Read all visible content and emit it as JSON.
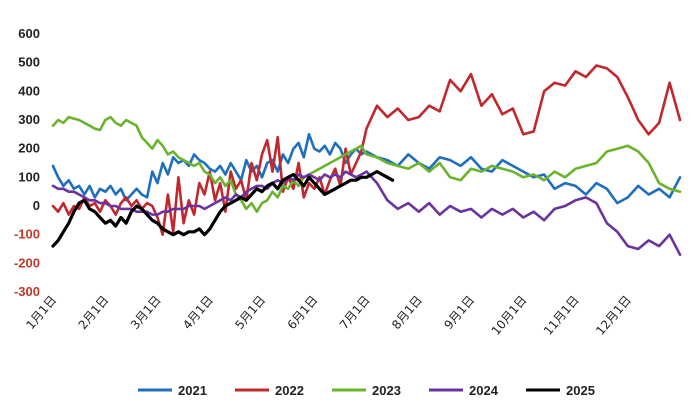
{
  "chart_data": {
    "type": "line",
    "title": "",
    "xlabel": "",
    "ylabel": "",
    "ylim": [
      -300,
      600
    ],
    "yticks": [
      600,
      500,
      400,
      300,
      200,
      100,
      0,
      -100,
      -200,
      -300
    ],
    "xticks": [
      "1月1日",
      "2月1日",
      "3月1日",
      "4月1日",
      "5月1日",
      "6月1日",
      "7月1日",
      "8月1日",
      "9月1日",
      "10月1日",
      "11月1日",
      "12月1日"
    ],
    "x_unit": "month (1 = 1月1日)",
    "grid": false,
    "legend_position": "bottom",
    "series": [
      {
        "name": "2021",
        "color": "#1f6fbf",
        "x": [
          1.0,
          1.1,
          1.2,
          1.3,
          1.4,
          1.5,
          1.6,
          1.7,
          1.8,
          1.9,
          2.0,
          2.1,
          2.2,
          2.3,
          2.4,
          2.5,
          2.6,
          2.7,
          2.8,
          2.9,
          3.0,
          3.1,
          3.2,
          3.3,
          3.4,
          3.5,
          3.6,
          3.7,
          3.8,
          3.9,
          4.0,
          4.1,
          4.2,
          4.3,
          4.4,
          4.5,
          4.6,
          4.7,
          4.8,
          4.9,
          5.0,
          5.1,
          5.2,
          5.3,
          5.4,
          5.5,
          5.6,
          5.7,
          5.8,
          5.9,
          6.0,
          6.1,
          6.2,
          6.3,
          6.4,
          6.5,
          6.6,
          6.7,
          6.8,
          6.9,
          7.0,
          7.2,
          7.4,
          7.6,
          7.8,
          8.0,
          8.2,
          8.4,
          8.6,
          8.8,
          9.0,
          9.2,
          9.4,
          9.6,
          9.8,
          10.0,
          10.2,
          10.4,
          10.6,
          10.8,
          11.0,
          11.2,
          11.4,
          11.6,
          11.8,
          12.0,
          12.2,
          12.4,
          12.6,
          12.8,
          13.0
        ],
        "y": [
          140,
          100,
          70,
          90,
          60,
          70,
          40,
          70,
          30,
          60,
          50,
          70,
          40,
          60,
          20,
          40,
          60,
          40,
          30,
          120,
          80,
          150,
          110,
          170,
          150,
          160,
          140,
          180,
          160,
          150,
          130,
          120,
          140,
          110,
          150,
          120,
          90,
          160,
          120,
          140,
          100,
          150,
          160,
          120,
          180,
          150,
          200,
          220,
          170,
          250,
          200,
          190,
          210,
          180,
          220,
          200,
          150,
          180,
          200,
          180,
          190,
          170,
          160,
          140,
          180,
          150,
          130,
          170,
          160,
          140,
          170,
          130,
          120,
          160,
          140,
          120,
          100,
          110,
          60,
          80,
          70,
          40,
          80,
          60,
          10,
          30,
          70,
          40,
          60,
          30,
          100
        ]
      },
      {
        "name": "2022",
        "color": "#c0282d",
        "x": [
          1.0,
          1.1,
          1.2,
          1.3,
          1.4,
          1.5,
          1.6,
          1.7,
          1.8,
          1.9,
          2.0,
          2.1,
          2.2,
          2.3,
          2.4,
          2.5,
          2.6,
          2.7,
          2.8,
          2.9,
          3.0,
          3.1,
          3.2,
          3.3,
          3.4,
          3.5,
          3.6,
          3.7,
          3.8,
          3.9,
          4.0,
          4.1,
          4.2,
          4.3,
          4.4,
          4.5,
          4.6,
          4.7,
          4.8,
          4.9,
          5.0,
          5.1,
          5.2,
          5.3,
          5.4,
          5.5,
          5.6,
          5.7,
          5.8,
          5.9,
          6.0,
          6.1,
          6.2,
          6.3,
          6.4,
          6.5,
          6.6,
          6.7,
          6.8,
          6.9,
          7.0,
          7.2,
          7.4,
          7.6,
          7.8,
          8.0,
          8.2,
          8.4,
          8.6,
          8.8,
          9.0,
          9.2,
          9.4,
          9.6,
          9.8,
          10.0,
          10.2,
          10.4,
          10.6,
          10.8,
          11.0,
          11.2,
          11.4,
          11.6,
          11.8,
          12.0,
          12.2,
          12.4,
          12.6,
          12.8,
          13.0
        ],
        "y": [
          0,
          -20,
          10,
          -30,
          0,
          -10,
          30,
          0,
          10,
          -20,
          20,
          0,
          -30,
          10,
          30,
          0,
          20,
          -10,
          10,
          0,
          -40,
          -100,
          40,
          -90,
          100,
          -60,
          20,
          -30,
          80,
          40,
          120,
          20,
          80,
          -20,
          120,
          60,
          90,
          20,
          150,
          90,
          180,
          230,
          120,
          240,
          50,
          100,
          60,
          150,
          30,
          80,
          60,
          100,
          40,
          90,
          130,
          70,
          200,
          110,
          150,
          190,
          270,
          350,
          310,
          340,
          300,
          310,
          350,
          330,
          440,
          400,
          460,
          350,
          390,
          320,
          340,
          250,
          260,
          400,
          430,
          420,
          470,
          450,
          490,
          480,
          450,
          380,
          300,
          250,
          290,
          430,
          300
        ]
      },
      {
        "name": "2023",
        "color": "#6ab42d",
        "x": [
          1.0,
          1.1,
          1.2,
          1.3,
          1.4,
          1.5,
          1.6,
          1.7,
          1.8,
          1.9,
          2.0,
          2.1,
          2.2,
          2.3,
          2.4,
          2.5,
          2.6,
          2.7,
          2.8,
          2.9,
          3.0,
          3.1,
          3.2,
          3.3,
          3.4,
          3.5,
          3.6,
          3.7,
          3.8,
          3.9,
          4.0,
          4.1,
          4.2,
          4.3,
          4.4,
          4.5,
          4.6,
          4.7,
          4.8,
          4.9,
          5.0,
          5.1,
          5.2,
          5.3,
          5.4,
          5.5,
          5.6,
          5.7,
          5.8,
          5.9,
          6.0,
          6.1,
          6.2,
          6.3,
          6.4,
          6.5,
          6.6,
          6.7,
          6.8,
          6.9,
          7.0,
          7.2,
          7.4,
          7.6,
          7.8,
          8.0,
          8.2,
          8.4,
          8.6,
          8.8,
          9.0,
          9.2,
          9.4,
          9.6,
          9.8,
          10.0,
          10.2,
          10.4,
          10.6,
          10.8,
          11.0,
          11.2,
          11.4,
          11.6,
          11.8,
          12.0,
          12.2,
          12.4,
          12.6,
          12.8,
          13.0
        ],
        "y": [
          280,
          300,
          290,
          310,
          305,
          300,
          290,
          280,
          270,
          265,
          300,
          310,
          290,
          280,
          300,
          290,
          280,
          240,
          220,
          200,
          230,
          210,
          180,
          190,
          170,
          160,
          150,
          140,
          150,
          120,
          110,
          80,
          100,
          70,
          90,
          40,
          20,
          -10,
          10,
          -20,
          10,
          20,
          50,
          30,
          70,
          60,
          90,
          70,
          100,
          110,
          120,
          130,
          140,
          150,
          160,
          170,
          180,
          190,
          200,
          210,
          180,
          170,
          150,
          140,
          130,
          150,
          120,
          150,
          100,
          90,
          130,
          120,
          140,
          130,
          120,
          100,
          110,
          90,
          120,
          100,
          130,
          140,
          150,
          190,
          200,
          210,
          190,
          150,
          80,
          60,
          50
        ]
      },
      {
        "name": "2024",
        "color": "#6b33a0",
        "x": [
          1.0,
          1.1,
          1.2,
          1.3,
          1.4,
          1.5,
          1.6,
          1.7,
          1.8,
          1.9,
          2.0,
          2.1,
          2.2,
          2.3,
          2.4,
          2.5,
          2.6,
          2.7,
          2.8,
          2.9,
          3.0,
          3.1,
          3.2,
          3.3,
          3.4,
          3.5,
          3.6,
          3.7,
          3.8,
          3.9,
          4.0,
          4.1,
          4.2,
          4.3,
          4.4,
          4.5,
          4.6,
          4.7,
          4.8,
          4.9,
          5.0,
          5.1,
          5.2,
          5.3,
          5.4,
          5.5,
          5.6,
          5.7,
          5.8,
          5.9,
          6.0,
          6.1,
          6.2,
          6.3,
          6.4,
          6.5,
          6.6,
          6.7,
          6.8,
          6.9,
          7.0,
          7.2,
          7.4,
          7.6,
          7.8,
          8.0,
          8.2,
          8.4,
          8.6,
          8.8,
          9.0,
          9.2,
          9.4,
          9.6,
          9.8,
          10.0,
          10.2,
          10.4,
          10.6,
          10.8,
          11.0,
          11.2,
          11.4,
          11.6,
          11.8,
          12.0,
          12.2,
          12.4,
          12.6,
          12.8,
          13.0
        ],
        "y": [
          70,
          60,
          60,
          50,
          50,
          40,
          30,
          20,
          20,
          10,
          10,
          0,
          0,
          -10,
          -10,
          -10,
          -20,
          -20,
          -20,
          -30,
          -30,
          -20,
          -20,
          -10,
          -10,
          -10,
          0,
          0,
          0,
          -10,
          0,
          10,
          20,
          30,
          20,
          40,
          30,
          50,
          60,
          70,
          70,
          60,
          80,
          90,
          80,
          100,
          90,
          110,
          100,
          110,
          100,
          90,
          110,
          100,
          110,
          100,
          120,
          110,
          100,
          110,
          120,
          80,
          20,
          -10,
          10,
          -20,
          10,
          -30,
          0,
          -20,
          -10,
          -40,
          -10,
          -30,
          -10,
          -40,
          -20,
          -50,
          -10,
          0,
          20,
          30,
          10,
          -60,
          -90,
          -140,
          -150,
          -120,
          -140,
          -100,
          -170
        ]
      },
      {
        "name": "2025",
        "color": "#000000",
        "x": [
          1.0,
          1.1,
          1.2,
          1.3,
          1.4,
          1.5,
          1.6,
          1.7,
          1.8,
          1.9,
          2.0,
          2.1,
          2.2,
          2.3,
          2.4,
          2.5,
          2.6,
          2.7,
          2.8,
          2.9,
          3.0,
          3.1,
          3.2,
          3.3,
          3.4,
          3.5,
          3.6,
          3.7,
          3.8,
          3.9,
          4.0,
          4.1,
          4.2,
          4.3,
          4.4,
          4.5,
          4.6,
          4.7,
          4.8,
          4.9,
          5.0,
          5.1,
          5.2,
          5.3,
          5.4,
          5.5,
          5.6,
          5.7,
          5.8,
          5.9,
          6.0,
          6.1,
          6.2,
          6.3,
          6.4,
          6.5,
          6.6,
          6.7,
          6.8,
          6.9,
          7.0,
          7.1,
          7.2,
          7.3,
          7.4,
          7.5
        ],
        "y": [
          -140,
          -120,
          -90,
          -60,
          -20,
          10,
          20,
          -10,
          -20,
          -40,
          -60,
          -50,
          -70,
          -40,
          -60,
          -20,
          0,
          -10,
          -30,
          -50,
          -60,
          -80,
          -90,
          -100,
          -90,
          -100,
          -90,
          -90,
          -80,
          -100,
          -80,
          -50,
          -20,
          0,
          10,
          20,
          30,
          20,
          40,
          60,
          50,
          70,
          80,
          60,
          90,
          100,
          110,
          90,
          70,
          100,
          80,
          60,
          40,
          50,
          60,
          70,
          80,
          90,
          90,
          100,
          100,
          110,
          120,
          110,
          100,
          90
        ]
      }
    ]
  }
}
